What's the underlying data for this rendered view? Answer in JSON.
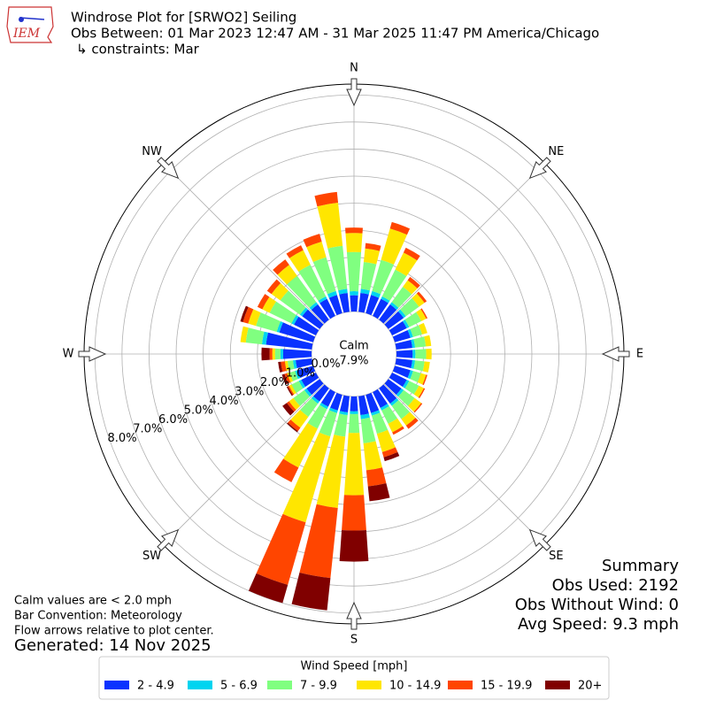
{
  "chart_data": {
    "type": "windrose",
    "logo_text": "IEM",
    "title": "Windrose Plot for [SRWO2] Seiling",
    "subtitle": "Obs Between: 01 Mar 2023 12:47 AM - 31 Mar 2025 11:47 PM America/Chicago",
    "constraints": "↳ constraints: Mar",
    "directions": [
      0,
      10,
      20,
      30,
      40,
      50,
      60,
      70,
      80,
      90,
      100,
      110,
      120,
      130,
      140,
      150,
      160,
      170,
      180,
      190,
      200,
      210,
      220,
      230,
      240,
      250,
      260,
      270,
      280,
      290,
      300,
      310,
      320,
      330,
      340,
      350
    ],
    "series": [
      {
        "name": "2 - 4.9",
        "color": "#0a32ff",
        "values": [
          0.6,
          0.7,
          0.7,
          0.7,
          0.7,
          0.7,
          0.6,
          0.6,
          0.6,
          0.6,
          0.6,
          0.6,
          0.6,
          0.6,
          0.7,
          0.65,
          0.7,
          0.7,
          0.55,
          0.6,
          0.6,
          0.6,
          0.6,
          0.6,
          0.6,
          0.6,
          0.6,
          1.05,
          1.7,
          1.3,
          0.9,
          0.8,
          0.7,
          0.7,
          0.7,
          0.7
        ]
      },
      {
        "name": "5 - 6.9",
        "color": "#00d4f0",
        "values": [
          0.15,
          0.15,
          0.15,
          0.1,
          0.1,
          0.1,
          0.1,
          0.1,
          0.1,
          0.1,
          0.1,
          0.1,
          0.1,
          0.1,
          0.1,
          0.1,
          0.1,
          0.15,
          0.1,
          0.1,
          0.1,
          0.1,
          0.1,
          0.1,
          0.1,
          0.1,
          0.1,
          0.1,
          0.15,
          0.1,
          0.1,
          0.1,
          0.1,
          0.1,
          0.15,
          0.15
        ]
      },
      {
        "name": "7 - 9.9",
        "color": "#80ff80",
        "values": [
          1.45,
          1.0,
          1.2,
          1.1,
          0.7,
          0.6,
          0.5,
          0.35,
          0.4,
          0.4,
          0.35,
          0.3,
          0.4,
          0.5,
          0.6,
          0.55,
          0.7,
          0.9,
          0.7,
          0.8,
          0.9,
          0.8,
          0.6,
          0.5,
          0.3,
          0.2,
          0.2,
          0.2,
          0.6,
          0.8,
          0.9,
          0.9,
          1.2,
          1.3,
          1.3,
          1.6
        ]
      },
      {
        "name": "10 - 14.9",
        "color": "#ffe600",
        "values": [
          0.7,
          0.5,
          1.2,
          0.7,
          0.3,
          0.25,
          0.2,
          0.2,
          0.2,
          0.2,
          0.2,
          0.2,
          0.2,
          0.3,
          0.3,
          0.35,
          0.7,
          1.0,
          2.3,
          2.65,
          3.3,
          1.6,
          0.5,
          0.2,
          0.1,
          0.1,
          0.1,
          0.1,
          0.2,
          0.3,
          0.3,
          0.4,
          0.5,
          0.6,
          0.6,
          1.6
        ]
      },
      {
        "name": "15 - 19.9",
        "color": "#ff4500",
        "values": [
          0.2,
          0.2,
          0.25,
          0.2,
          0.15,
          0.1,
          0.05,
          0,
          0,
          0,
          0,
          0.05,
          0.05,
          0.05,
          0.15,
          0.1,
          0.2,
          0.6,
          1.3,
          2.6,
          2.4,
          0.6,
          0.15,
          0.1,
          0.05,
          0.1,
          0.15,
          0.1,
          0,
          0.2,
          0.2,
          0.2,
          0.25,
          0.2,
          0.3,
          0.4
        ]
      },
      {
        "name": "20+",
        "color": "#800000",
        "values": [
          0,
          0,
          0,
          0,
          0,
          0,
          0,
          0,
          0,
          0,
          0,
          0,
          0,
          0,
          0,
          0,
          0.15,
          0.55,
          1.15,
          1.2,
          0.7,
          0,
          0.05,
          0.2,
          0.05,
          0.1,
          0.1,
          0.3,
          0,
          0.1,
          0,
          0,
          0,
          0,
          0,
          0
        ]
      }
    ],
    "rlim": [
      0,
      8.4
    ],
    "rticks": [
      {
        "value": 0,
        "label": "0.0%"
      },
      {
        "value": 1,
        "label": "1.0%"
      },
      {
        "value": 2,
        "label": "2.0%"
      },
      {
        "value": 3,
        "label": "3.0%"
      },
      {
        "value": 4,
        "label": "4.0%"
      },
      {
        "value": 5,
        "label": "5.0%"
      },
      {
        "value": 6,
        "label": "6.0%"
      },
      {
        "value": 7,
        "label": "7.0%"
      },
      {
        "value": 8,
        "label": "8.0%"
      }
    ],
    "angle_ticks": [
      {
        "value": 0,
        "label": "N"
      },
      {
        "value": 45,
        "label": "NE"
      },
      {
        "value": 90,
        "label": "E"
      },
      {
        "value": 135,
        "label": "SE"
      },
      {
        "value": 180,
        "label": "S"
      },
      {
        "value": 225,
        "label": "SW"
      },
      {
        "value": 270,
        "label": "W"
      },
      {
        "value": 315,
        "label": "NW"
      }
    ],
    "grid": true,
    "calm": {
      "label": "Calm",
      "value": 7.9,
      "value_label": "7.9%"
    },
    "summary": {
      "title": "Summary",
      "lines": [
        "Obs Used: 2192",
        "Obs Without Wind: 0",
        "Avg Speed: 9.3 mph"
      ]
    },
    "notes": [
      "Calm values are < 2.0 mph",
      "Bar Convention: Meteorology",
      "Flow arrows relative to plot center."
    ],
    "generated": "Generated: 14 Nov 2025",
    "legend_title": "Wind Speed [mph]",
    "legend": "bottom"
  }
}
